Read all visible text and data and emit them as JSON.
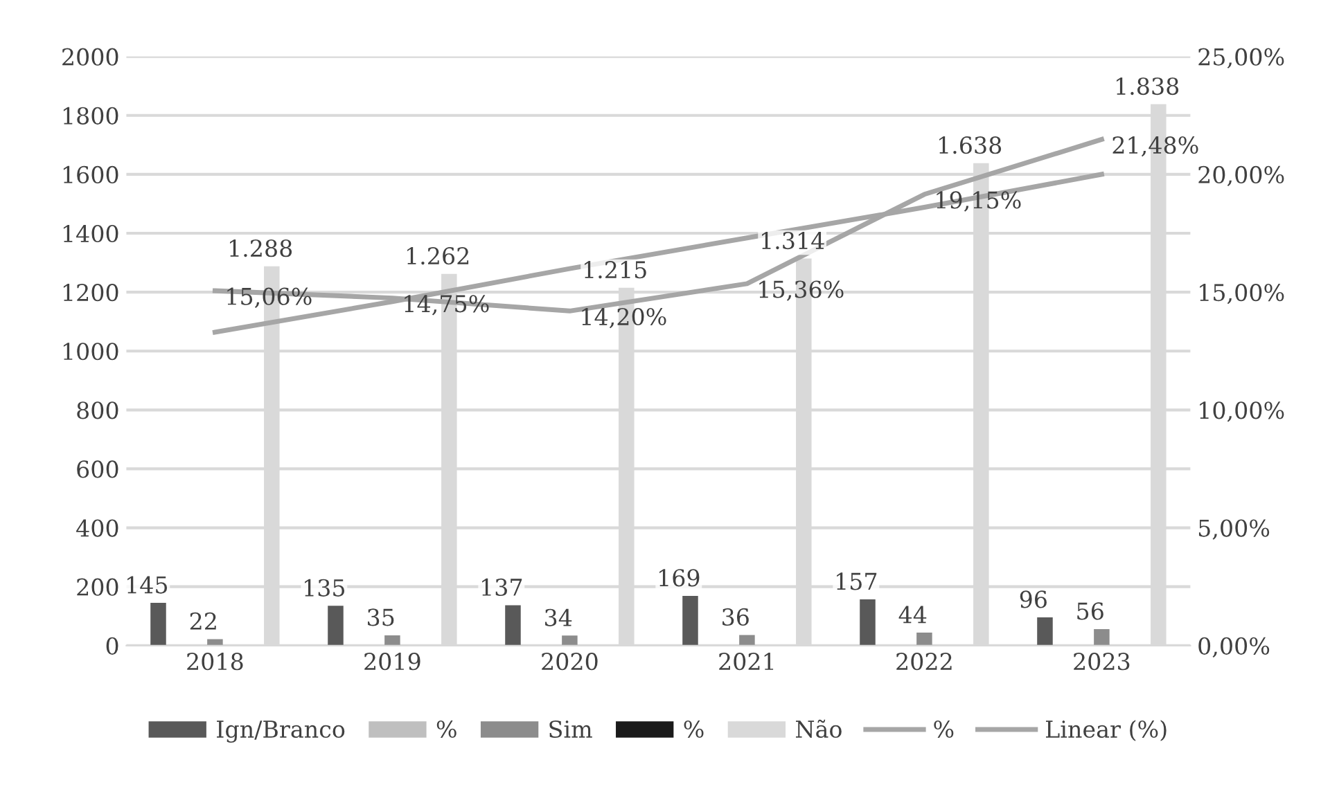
{
  "chart_data": {
    "type": "bar",
    "categories": [
      "2018",
      "2019",
      "2020",
      "2021",
      "2022",
      "2023"
    ],
    "series": [
      {
        "name": "Ign/Branco",
        "color": "#595959",
        "values": [
          145,
          135,
          137,
          169,
          157,
          96
        ],
        "value_labels": [
          "145",
          "135",
          "137",
          "169",
          "157",
          "96"
        ]
      },
      {
        "name": "%",
        "color": "#bfbfbf",
        "values": [
          null,
          null,
          null,
          null,
          null,
          null
        ]
      },
      {
        "name": "Sim",
        "color": "#8c8c8c",
        "values": [
          22,
          35,
          34,
          36,
          44,
          56
        ],
        "value_labels": [
          "22",
          "35",
          "34",
          "36",
          "44",
          "56"
        ]
      },
      {
        "name": "%",
        "color": "#1a1a1a",
        "values": [
          null,
          null,
          null,
          null,
          null,
          null
        ]
      },
      {
        "name": "Não",
        "color": "#d9d9d9",
        "values": [
          1288,
          1262,
          1215,
          1314,
          1638,
          1838
        ],
        "value_labels": [
          "1.288",
          "1.262",
          "1.215",
          "1.314",
          "1.638",
          "1.838"
        ]
      },
      {
        "name": "%",
        "type": "line",
        "axis": "y2",
        "color": "#a6a6a6",
        "values": [
          15.06,
          14.75,
          14.2,
          15.36,
          19.15,
          21.48
        ],
        "value_labels": [
          "15,06%",
          "14,75%",
          "14,20%",
          "15,36%",
          "19,15%",
          "21,48%"
        ]
      },
      {
        "name": "Linear (%)",
        "type": "line",
        "axis": "y2",
        "color": "#a6a6a6",
        "values": [
          13.3,
          14.6,
          16.0,
          17.3,
          18.6,
          20.0
        ]
      }
    ],
    "ylim": [
      0,
      2000
    ],
    "yticks": [
      0,
      200,
      400,
      600,
      800,
      1000,
      1200,
      1400,
      1600,
      1800,
      2000
    ],
    "y2lim": [
      0,
      25
    ],
    "y2ticks": [
      {
        "value": 0,
        "label": "0,00%"
      },
      {
        "value": 5,
        "label": "5,00%"
      },
      {
        "value": 10,
        "label": "10,00%"
      },
      {
        "value": 15,
        "label": "15,00%"
      },
      {
        "value": 20,
        "label": "20,00%"
      },
      {
        "value": 25,
        "label": "25,00%"
      }
    ],
    "grid": "y",
    "legend": "bottom",
    "marker": "none",
    "line_style": "solid"
  }
}
